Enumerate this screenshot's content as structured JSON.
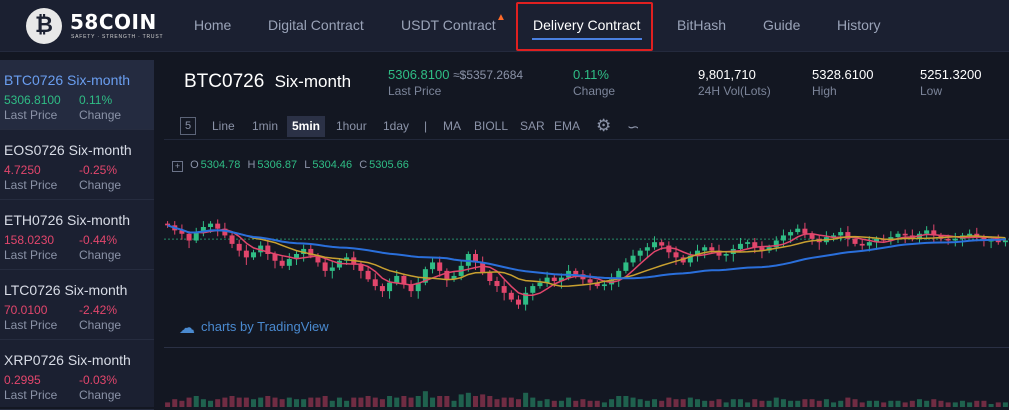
{
  "nav": {
    "logo_mark": "₿",
    "logo_name": "58COIN",
    "logo_tagline": "SAFETY · STRENGTH · TRUST",
    "items": [
      "Home",
      "Digital Contract",
      "USDT Contract",
      "Delivery Contract",
      "BitHash",
      "Guide",
      "History"
    ],
    "active": "Delivery Contract",
    "hot_icon": "flame-icon"
  },
  "sidebar": {
    "items": [
      {
        "name": "BTC0726 Six-month",
        "price": "5306.8100",
        "change": "0.11%",
        "direction": "up",
        "price_label": "Last Price",
        "change_label": "Change"
      },
      {
        "name": "EOS0726 Six-month",
        "price": "4.7250",
        "change": "-0.25%",
        "direction": "down",
        "price_label": "Last Price",
        "change_label": "Change"
      },
      {
        "name": "ETH0726 Six-month",
        "price": "158.0230",
        "change": "-0.44%",
        "direction": "down",
        "price_label": "Last Price",
        "change_label": "Change"
      },
      {
        "name": "LTC0726 Six-month",
        "price": "70.0100",
        "change": "-2.42%",
        "direction": "down",
        "price_label": "Last Price",
        "change_label": "Change"
      },
      {
        "name": "XRP0726 Six-month",
        "price": "0.2995",
        "change": "-0.03%",
        "direction": "down",
        "price_label": "Last Price",
        "change_label": "Change"
      }
    ]
  },
  "ticker": {
    "symbol": "BTC0726",
    "period": "Six-month",
    "last_price": "5306.8100",
    "last_price_usd": "≈$5357.2684",
    "last_price_label": "Last Price",
    "change": "0.11%",
    "change_label": "Change",
    "volume": "9,801,710",
    "volume_label": "24H Vol(Lots)",
    "high": "5328.6100",
    "high_label": "High",
    "low": "5251.3200",
    "low_label": "Low"
  },
  "toolbar": {
    "interval_box": "5",
    "intervals": [
      "Line",
      "1min",
      "5min",
      "1hour",
      "1day"
    ],
    "active_interval": "5min",
    "separator": "|",
    "indicators": [
      "MA",
      "BIOLL",
      "SAR",
      "EMA"
    ],
    "settings_icon": "gear-icon",
    "indicators_icon": "chart-indicators-icon"
  },
  "ohlc": {
    "toggle": "+",
    "o_label": "O",
    "o": "5304.78",
    "h_label": "H",
    "h": "5306.87",
    "l_label": "L",
    "l": "5304.46",
    "c_label": "C",
    "c": "5305.66"
  },
  "credit": {
    "icon": "tradingview-cloud-icon",
    "text": "charts by TradingView"
  },
  "chart_data": {
    "type": "candlestick",
    "up_color": "#2fbd85",
    "down_color": "#e2466c",
    "ma_colors": [
      "#e2466c",
      "#c8a030",
      "#2a6fdb"
    ],
    "ylim": [
      5250,
      5330
    ],
    "last_price_line": 5306.8,
    "closes": [
      5315,
      5312,
      5310,
      5306,
      5311,
      5314,
      5316,
      5313,
      5309,
      5304,
      5300,
      5296,
      5299,
      5303,
      5298,
      5294,
      5291,
      5295,
      5298,
      5301,
      5297,
      5293,
      5288,
      5290,
      5294,
      5296,
      5292,
      5288,
      5283,
      5279,
      5276,
      5281,
      5285,
      5280,
      5276,
      5281,
      5289,
      5293,
      5288,
      5283,
      5285,
      5291,
      5298,
      5293,
      5287,
      5282,
      5279,
      5275,
      5271,
      5268,
      5275,
      5279,
      5281,
      5284,
      5282,
      5284,
      5288,
      5286,
      5283,
      5281,
      5279,
      5280,
      5283,
      5288,
      5293,
      5297,
      5300,
      5302,
      5305,
      5303,
      5299,
      5296,
      5293,
      5297,
      5300,
      5302,
      5300,
      5297,
      5298,
      5301,
      5304,
      5305,
      5302,
      5300,
      5302,
      5306,
      5309,
      5311,
      5313,
      5310,
      5307,
      5305,
      5308,
      5309,
      5311,
      5307,
      5304,
      5303,
      5305,
      5307,
      5306,
      5308,
      5310,
      5309,
      5307,
      5310,
      5312,
      5309,
      5307,
      5306,
      5307,
      5309,
      5310,
      5308,
      5306,
      5306,
      5305,
      5306
    ]
  }
}
